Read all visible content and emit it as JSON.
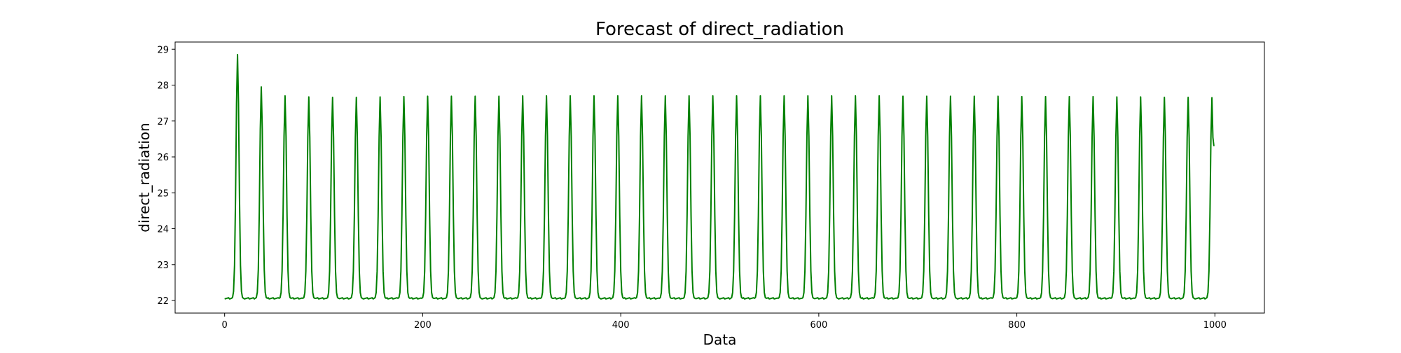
{
  "chart_data": {
    "type": "line",
    "title": "Forecast of direct_radiation",
    "xlabel": "Data",
    "ylabel": "direct_radiation",
    "xlim": [
      -50,
      1050
    ],
    "ylim": [
      21.65,
      29.2
    ],
    "xticks": [
      0,
      200,
      400,
      600,
      800,
      1000
    ],
    "yticks": [
      22,
      23,
      24,
      25,
      26,
      27,
      28,
      29
    ],
    "grid": false,
    "legend": "none",
    "series": [
      {
        "color": "#008000",
        "points_count": 1000,
        "period": 24,
        "baseline": 22.06,
        "first_peak_x": 13,
        "peak_values": [
          28.85,
          27.95,
          27.7,
          27.67,
          27.66,
          27.66,
          27.67,
          27.68,
          27.69,
          27.69,
          27.69,
          27.69,
          27.7,
          27.7,
          27.7,
          27.7,
          27.7,
          27.7,
          27.7,
          27.7,
          27.7,
          27.7,
          27.7,
          27.7,
          27.7,
          27.7,
          27.7,
          27.7,
          27.69,
          27.69,
          27.69,
          27.69,
          27.69,
          27.68,
          27.68,
          27.68,
          27.68,
          27.67,
          27.67,
          27.66,
          27.66,
          27.65
        ],
        "last_x": 999,
        "last_value": 26.3
      }
    ]
  }
}
